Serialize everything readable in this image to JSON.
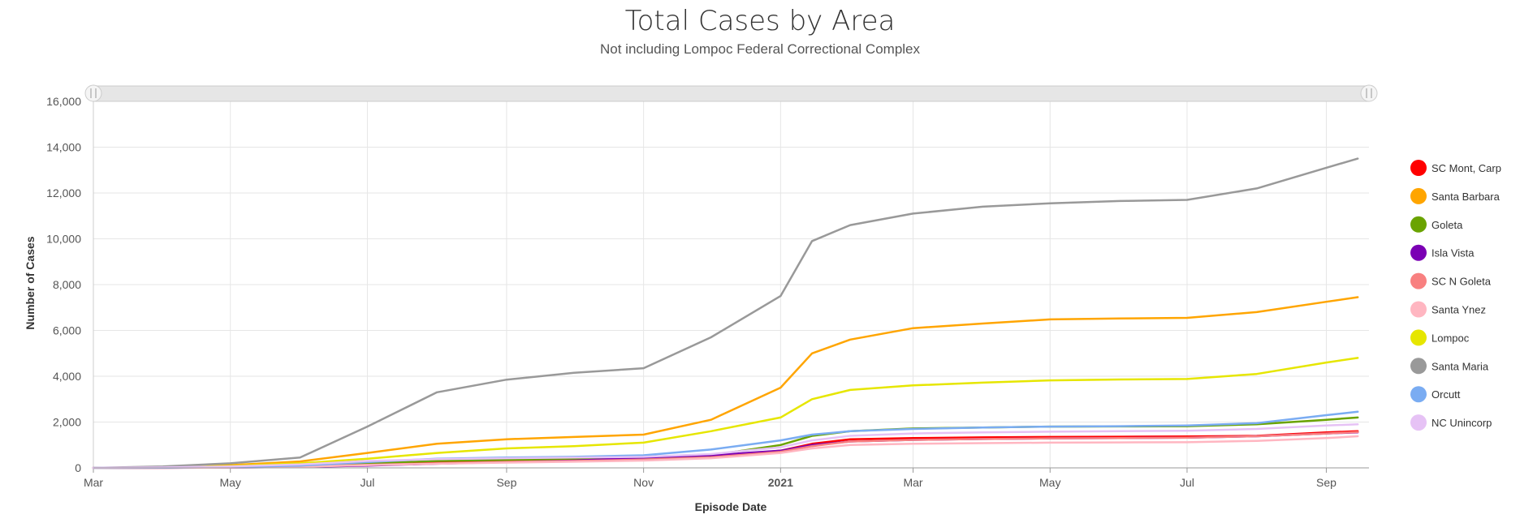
{
  "chart_data": {
    "type": "line",
    "title": "Total Cases by Area",
    "subtitle": "Not including Lompoc Federal Correctional Complex",
    "xlabel": "Episode Date",
    "ylabel": "Number of Cases",
    "ylim": [
      0,
      16000
    ],
    "yticks": [
      0,
      2000,
      4000,
      6000,
      8000,
      10000,
      12000,
      14000,
      16000
    ],
    "ytick_labels": [
      "0",
      "2,000",
      "4,000",
      "6,000",
      "8,000",
      "10,000",
      "12,000",
      "14,000",
      "16,000"
    ],
    "xlim": [
      "2020-03-01",
      "2021-09-20"
    ],
    "xticks": [
      {
        "date": "2020-03-01",
        "label": "Mar"
      },
      {
        "date": "2020-05-01",
        "label": "May"
      },
      {
        "date": "2020-07-01",
        "label": "Jul"
      },
      {
        "date": "2020-09-01",
        "label": "Sep"
      },
      {
        "date": "2020-11-01",
        "label": "Nov"
      },
      {
        "date": "2021-01-01",
        "label": "2021"
      },
      {
        "date": "2021-03-01",
        "label": "Mar"
      },
      {
        "date": "2021-05-01",
        "label": "May"
      },
      {
        "date": "2021-07-01",
        "label": "Jul"
      },
      {
        "date": "2021-09-01",
        "label": "Sep"
      }
    ],
    "grid": true,
    "legend_position": "right",
    "x": [
      "2020-03-01",
      "2020-04-01",
      "2020-05-01",
      "2020-06-01",
      "2020-07-01",
      "2020-08-01",
      "2020-09-01",
      "2020-10-01",
      "2020-11-01",
      "2020-12-01",
      "2021-01-01",
      "2021-01-15",
      "2021-02-01",
      "2021-03-01",
      "2021-04-01",
      "2021-05-01",
      "2021-06-01",
      "2021-07-01",
      "2021-08-01",
      "2021-09-01",
      "2021-09-15"
    ],
    "series": [
      {
        "name": "SC Mont, Carp",
        "color": "#ff0000",
        "values": [
          0,
          5,
          20,
          60,
          150,
          250,
          300,
          330,
          380,
          480,
          750,
          1050,
          1250,
          1300,
          1330,
          1350,
          1360,
          1370,
          1400,
          1550,
          1600
        ]
      },
      {
        "name": "Santa Barbara",
        "color": "#ffa500",
        "values": [
          0,
          30,
          120,
          280,
          650,
          1050,
          1250,
          1350,
          1450,
          2100,
          3500,
          5000,
          5600,
          6100,
          6300,
          6480,
          6520,
          6550,
          6800,
          7250,
          7450
        ]
      },
      {
        "name": "Goleta",
        "color": "#6aa300",
        "values": [
          0,
          10,
          40,
          100,
          200,
          300,
          350,
          380,
          420,
          550,
          1000,
          1400,
          1600,
          1720,
          1760,
          1800,
          1810,
          1820,
          1900,
          2100,
          2200
        ]
      },
      {
        "name": "Isla Vista",
        "color": "#7b00b4",
        "values": [
          0,
          5,
          15,
          40,
          100,
          180,
          250,
          320,
          450,
          550,
          750,
          1000,
          1150,
          1220,
          1260,
          1290,
          1300,
          1320,
          1380,
          1500,
          1550
        ]
      },
      {
        "name": "SC N Goleta",
        "color": "#f88080",
        "values": [
          0,
          5,
          20,
          60,
          130,
          200,
          260,
          300,
          360,
          460,
          700,
          950,
          1150,
          1220,
          1260,
          1290,
          1300,
          1320,
          1380,
          1500,
          1560
        ]
      },
      {
        "name": "Santa Ynez",
        "color": "#ffb6c1",
        "values": [
          0,
          5,
          15,
          50,
          120,
          180,
          230,
          270,
          320,
          420,
          650,
          850,
          1000,
          1050,
          1080,
          1100,
          1110,
          1120,
          1180,
          1300,
          1380
        ]
      },
      {
        "name": "Lompoc",
        "color": "#e6e600",
        "values": [
          0,
          20,
          80,
          200,
          400,
          650,
          850,
          950,
          1100,
          1600,
          2200,
          3000,
          3400,
          3600,
          3720,
          3820,
          3860,
          3880,
          4100,
          4600,
          4800
        ]
      },
      {
        "name": "Santa Maria",
        "color": "#999999",
        "values": [
          0,
          60,
          200,
          450,
          1800,
          3300,
          3850,
          4150,
          4350,
          5700,
          7500,
          9900,
          10600,
          11100,
          11400,
          11550,
          11650,
          11700,
          12200,
          13100,
          13500
        ]
      },
      {
        "name": "Orcutt",
        "color": "#7aacf2",
        "values": [
          0,
          10,
          40,
          100,
          250,
          400,
          450,
          480,
          550,
          800,
          1200,
          1450,
          1600,
          1700,
          1760,
          1800,
          1820,
          1850,
          1950,
          2300,
          2450
        ]
      },
      {
        "name": "NC Unincorp",
        "color": "#e6c2f5",
        "values": [
          0,
          20,
          60,
          150,
          300,
          380,
          420,
          450,
          480,
          600,
          900,
          1200,
          1400,
          1500,
          1550,
          1580,
          1600,
          1620,
          1700,
          1850,
          1900
        ]
      }
    ]
  }
}
